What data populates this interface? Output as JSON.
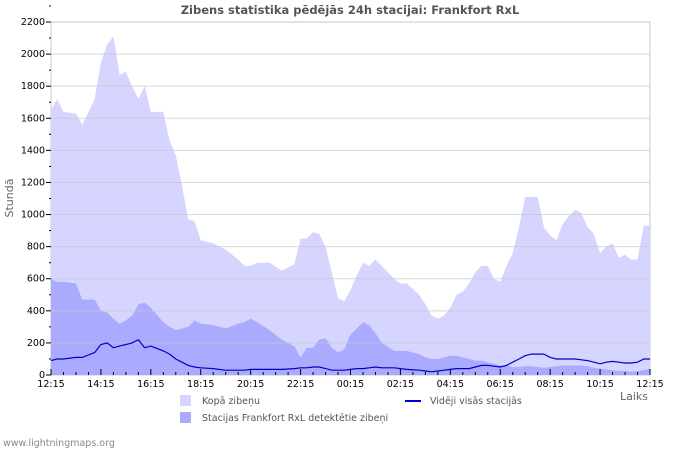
{
  "chart_data": {
    "type": "area",
    "title": "Zibens statistika pēdējās 24h stacijai: Frankfort RxL",
    "xlabel": "Laiks",
    "ylabel": "Stundā",
    "ylim": [
      0,
      2200
    ],
    "y_ticks": [
      0,
      200,
      400,
      600,
      800,
      1000,
      1200,
      1400,
      1600,
      1800,
      2000,
      2200
    ],
    "x_tick_labels": [
      "12:15",
      "14:15",
      "16:15",
      "18:15",
      "20:15",
      "22:15",
      "00:15",
      "02:15",
      "04:15",
      "06:15",
      "08:15",
      "10:15",
      "12:15"
    ],
    "grid": true,
    "legend_position": "bottom",
    "x_hours": [
      0,
      0.25,
      0.5,
      1,
      1.25,
      1.75,
      2,
      2.25,
      2.5,
      2.75,
      3,
      3.25,
      3.5,
      3.75,
      4,
      4.5,
      4.75,
      5,
      5.25,
      5.5,
      5.75,
      6,
      6.5,
      7,
      7.5,
      7.75,
      8,
      8.25,
      8.75,
      9.25,
      9.75,
      10,
      10.25,
      10.5,
      10.75,
      11,
      11.25,
      11.5,
      11.75,
      12,
      12.25,
      12.5,
      12.75,
      13,
      13.25,
      13.75,
      14,
      14.25,
      14.75,
      15,
      15.25,
      15.5,
      15.75,
      16,
      16.25,
      16.5,
      16.75,
      17,
      17.25,
      17.5,
      17.75,
      18,
      18.25,
      18.5,
      18.75,
      19,
      19.25,
      19.5,
      19.75,
      20,
      20.25,
      20.5,
      20.75,
      21,
      21.25,
      21.5,
      21.75,
      22,
      22.25,
      22.5,
      22.75,
      23,
      23.25,
      23.5,
      23.75,
      24
    ],
    "series": [
      {
        "name": "Kopā zibeņu",
        "color": "#d5d5ff",
        "values": [
          1650,
          1720,
          1640,
          1630,
          1560,
          1720,
          1950,
          2060,
          2110,
          1870,
          1890,
          1800,
          1720,
          1800,
          1640,
          1640,
          1460,
          1370,
          1180,
          970,
          960,
          840,
          820,
          780,
          720,
          680,
          680,
          700,
          700,
          650,
          690,
          850,
          850,
          890,
          880,
          800,
          640,
          480,
          460,
          530,
          620,
          700,
          680,
          720,
          680,
          600,
          570,
          570,
          500,
          440,
          370,
          350,
          370,
          420,
          500,
          520,
          570,
          640,
          680,
          680,
          600,
          580,
          680,
          760,
          920,
          1110,
          1110,
          1110,
          920,
          870,
          840,
          940,
          990,
          1030,
          1010,
          920,
          880,
          760,
          800,
          820,
          730,
          750,
          720,
          720,
          930,
          930
        ]
      },
      {
        "name": "Stacijas Frankfort RxL detektētie zibeņi",
        "color": "#aaaaff",
        "values": [
          600,
          580,
          580,
          570,
          470,
          470,
          400,
          390,
          350,
          320,
          340,
          370,
          440,
          450,
          420,
          330,
          300,
          280,
          290,
          300,
          340,
          320,
          310,
          290,
          320,
          330,
          350,
          330,
          280,
          220,
          180,
          110,
          170,
          170,
          220,
          230,
          170,
          140,
          160,
          250,
          290,
          330,
          310,
          260,
          200,
          150,
          150,
          150,
          130,
          110,
          100,
          100,
          110,
          120,
          120,
          110,
          100,
          90,
          90,
          80,
          70,
          60,
          60,
          50,
          50,
          55,
          55,
          50,
          45,
          50,
          55,
          60,
          60,
          60,
          60,
          55,
          45,
          40,
          35,
          30,
          25,
          25,
          20,
          25,
          30,
          40
        ]
      },
      {
        "name": "Vidēji visās stacijās",
        "color": "#0000cc",
        "type": "line",
        "values": [
          90,
          100,
          100,
          110,
          110,
          140,
          190,
          200,
          170,
          180,
          190,
          200,
          220,
          170,
          180,
          150,
          130,
          100,
          80,
          60,
          50,
          45,
          40,
          30,
          30,
          30,
          35,
          35,
          35,
          35,
          40,
          45,
          45,
          50,
          50,
          40,
          30,
          30,
          30,
          35,
          40,
          40,
          45,
          50,
          45,
          45,
          40,
          35,
          30,
          25,
          20,
          25,
          30,
          35,
          40,
          40,
          40,
          50,
          60,
          60,
          55,
          50,
          60,
          80,
          100,
          120,
          130,
          130,
          130,
          110,
          100,
          100,
          100,
          100,
          95,
          90,
          80,
          70,
          80,
          85,
          80,
          75,
          75,
          80,
          100,
          100
        ]
      }
    ]
  },
  "header": {
    "title": "Zibens statistika pēdējās 24h stacijai: Frankfort RxL"
  },
  "axes": {
    "ylabel": "Stundā",
    "xlabel": "Laiks"
  },
  "legend": {
    "total": "Kopā zibeņu",
    "station": "Stacijas Frankfort RxL detektētie zibeņi",
    "average": "Vidēji visās stacijās"
  },
  "footer": {
    "text": "www.lightningmaps.org"
  },
  "colors": {
    "total": "#d5d5ff",
    "station": "#aaaaff",
    "average": "#0000cc",
    "grid": "#c8c8c8"
  }
}
